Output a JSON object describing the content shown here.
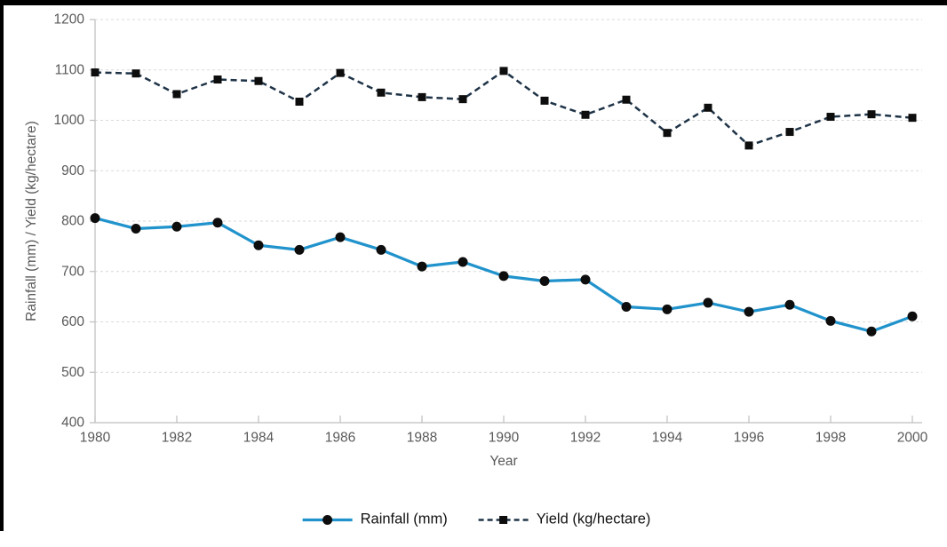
{
  "chart_data": {
    "type": "line",
    "title": "",
    "xlabel": "Year",
    "ylabel": "Rainfall (mm) / Yield (kg/hectare)",
    "x": [
      1980,
      1981,
      1982,
      1983,
      1984,
      1985,
      1986,
      1987,
      1988,
      1989,
      1990,
      1991,
      1992,
      1993,
      1994,
      1995,
      1996,
      1997,
      1998,
      1999,
      2000
    ],
    "series": [
      {
        "name": "Rainfall (mm)",
        "values": [
          806,
          785,
          789,
          797,
          752,
          743,
          768,
          743,
          710,
          719,
          691,
          681,
          684,
          630,
          625,
          638,
          620,
          634,
          602,
          581,
          611
        ],
        "color": "#2193CC",
        "line_style": "solid",
        "line_width": 3.25,
        "marker": "circle"
      },
      {
        "name": "Yield (kg/hectare)",
        "values": [
          1095,
          1093,
          1052,
          1081,
          1078,
          1037,
          1094,
          1055,
          1046,
          1042,
          1098,
          1039,
          1011,
          1041,
          975,
          1025,
          950,
          977,
          1007,
          1012,
          1005
        ],
        "color": "#1F3347",
        "line_style": "dashed",
        "line_width": 2.5,
        "marker": "square"
      }
    ],
    "ylim": [
      400,
      1200
    ],
    "xlim": [
      1980,
      2000
    ],
    "y_ticks": [
      400,
      500,
      600,
      700,
      800,
      900,
      1000,
      1100,
      1200
    ],
    "x_ticks": [
      1980,
      1982,
      1984,
      1986,
      1988,
      1990,
      1992,
      1994,
      1996,
      1998,
      2000
    ],
    "grid": "horizontal-dashed",
    "legend_position": "bottom"
  },
  "colors": {
    "marker": "#0D0D0D",
    "gridline": "#D9D9D9",
    "axis_line": "#BFBFBF",
    "tick_text": "#595959",
    "legend_text": "#121212",
    "frame_border": "#000000",
    "background": "#FFFFFF"
  }
}
